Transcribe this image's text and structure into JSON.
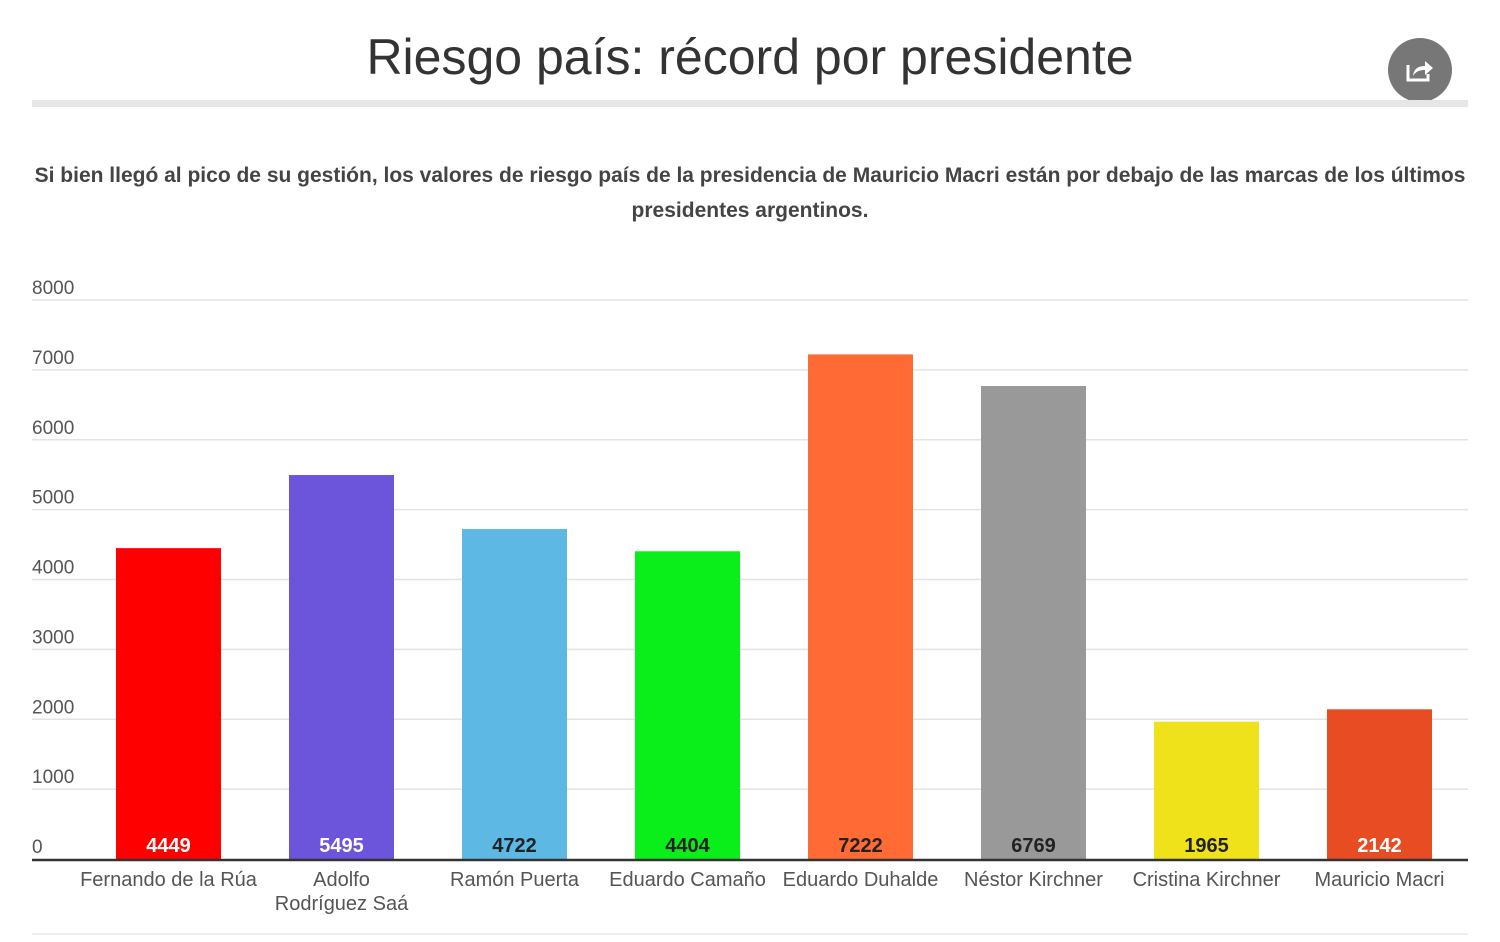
{
  "header": {
    "title": "Riesgo país: récord por presidente",
    "share_icon": "share-icon"
  },
  "subtitle": "Si bien llegó al pico de su gestión, los valores de riesgo país de la presidencia de Mauricio Macri están por debajo de las marcas de los últimos presidentes argentinos.",
  "chart_data": {
    "type": "bar",
    "title": "Riesgo país: récord por presidente",
    "categories": [
      "Fernando de la Rúa",
      "Adolfo Rodríguez Saá",
      "Ramón Puerta",
      "Eduardo Camaño",
      "Eduardo Duhalde",
      "Néstor Kirchner",
      "Cristina Kirchner",
      "Mauricio Macri"
    ],
    "values": [
      4449,
      5495,
      4722,
      4404,
      7222,
      6769,
      1965,
      2142
    ],
    "colors": [
      "#ff0000",
      "#6c55db",
      "#5db8e4",
      "#0aee1a",
      "#ff6a35",
      "#999999",
      "#f0e21a",
      "#e74c22"
    ],
    "label_colors": [
      "#ffffff",
      "#ffffff",
      "#222222",
      "#222222",
      "#222222",
      "#222222",
      "#222222",
      "#ffffff"
    ],
    "yticks": [
      0,
      1000,
      2000,
      3000,
      4000,
      5000,
      6000,
      7000,
      8000
    ],
    "ylim": [
      0,
      8000
    ],
    "grid": true,
    "xlabel": "",
    "ylabel": ""
  }
}
